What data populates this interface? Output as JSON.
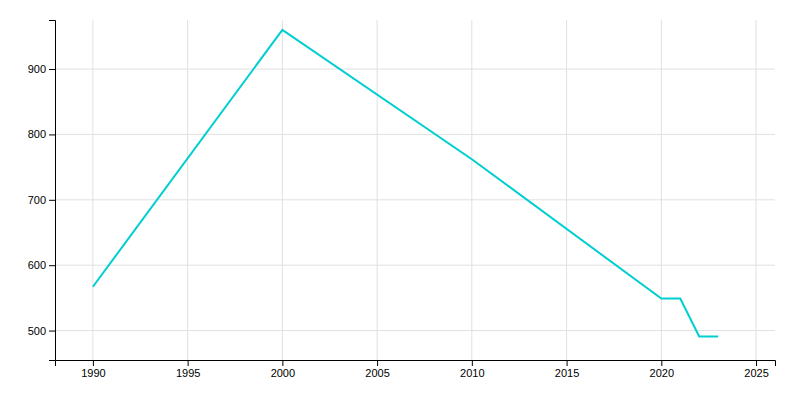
{
  "chart_data": {
    "type": "line",
    "x": [
      1990,
      2000,
      2010,
      2020,
      2021,
      2022,
      2023
    ],
    "values": [
      567,
      960,
      762,
      549,
      549,
      491,
      491
    ],
    "color": "#00CED1",
    "xlim": [
      1988,
      2026
    ],
    "ylim": [
      455,
      975
    ],
    "xticks": [
      1990,
      1995,
      2000,
      2005,
      2010,
      2015,
      2020,
      2025
    ],
    "yticks": [
      500,
      600,
      700,
      800,
      900
    ],
    "grid": true
  }
}
